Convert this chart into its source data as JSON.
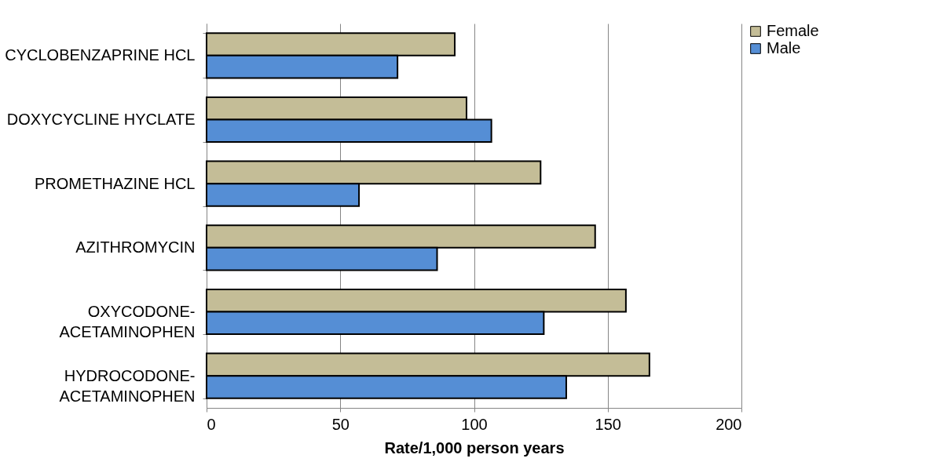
{
  "chart_data": {
    "type": "bar",
    "orientation": "horizontal",
    "xlabel": "Rate/1,000 person years",
    "categories": [
      "CYCLOBENZAPRINE HCL",
      "DOXYCYCLINE HYCLATE",
      "PROMETHAZINE HCL",
      "AZITHROMYCIN",
      "OXYCODONE-ACETAMINOPHEN",
      "HYDROCODONE-ACETAMINOPHEN"
    ],
    "series": [
      {
        "name": "Female",
        "color": "#c4bd97",
        "values": [
          92.8,
          97.2,
          124.9,
          145.3,
          156.8,
          165.6
        ]
      },
      {
        "name": "Male",
        "color": "#558ed5",
        "values": [
          71.4,
          106.5,
          57,
          86.2,
          126.1,
          134.5
        ]
      }
    ],
    "xlim": [
      0,
      200
    ],
    "xticks": [
      0,
      50,
      100,
      150,
      200
    ],
    "grid": "x",
    "legend": "right"
  }
}
